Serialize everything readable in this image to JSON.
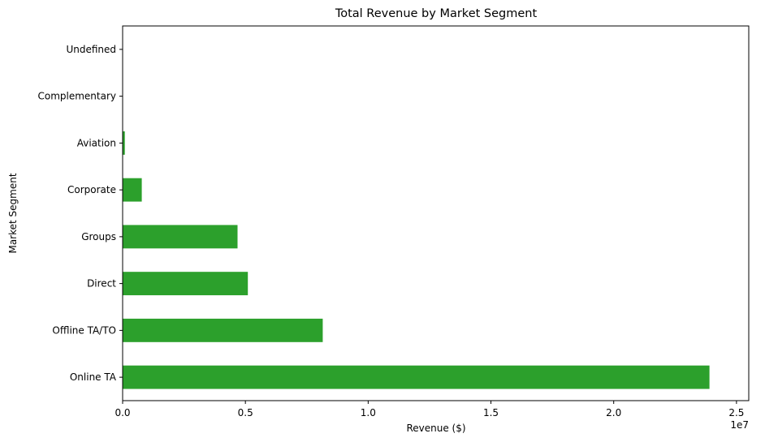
{
  "chart_data": {
    "type": "bar",
    "orientation": "horizontal",
    "title": "Total Revenue by Market Segment",
    "xlabel": "Revenue ($)",
    "ylabel": "Market Segment",
    "x_offset_label": "1e7",
    "xlim": [
      0,
      25500000
    ],
    "xticks": [
      0,
      5000000,
      10000000,
      15000000,
      20000000,
      25000000
    ],
    "xtick_labels": [
      "0.0",
      "0.5",
      "1.0",
      "1.5",
      "2.0",
      "2.5"
    ],
    "categories": [
      "Online TA",
      "Offline TA/TO",
      "Direct",
      "Groups",
      "Corporate",
      "Aviation",
      "Complementary",
      "Undefined"
    ],
    "values": [
      23900000,
      8150000,
      5100000,
      4680000,
      780000,
      90000,
      0,
      1000
    ],
    "bar_color": "#2ca02c",
    "grid": false,
    "legend": "none"
  }
}
